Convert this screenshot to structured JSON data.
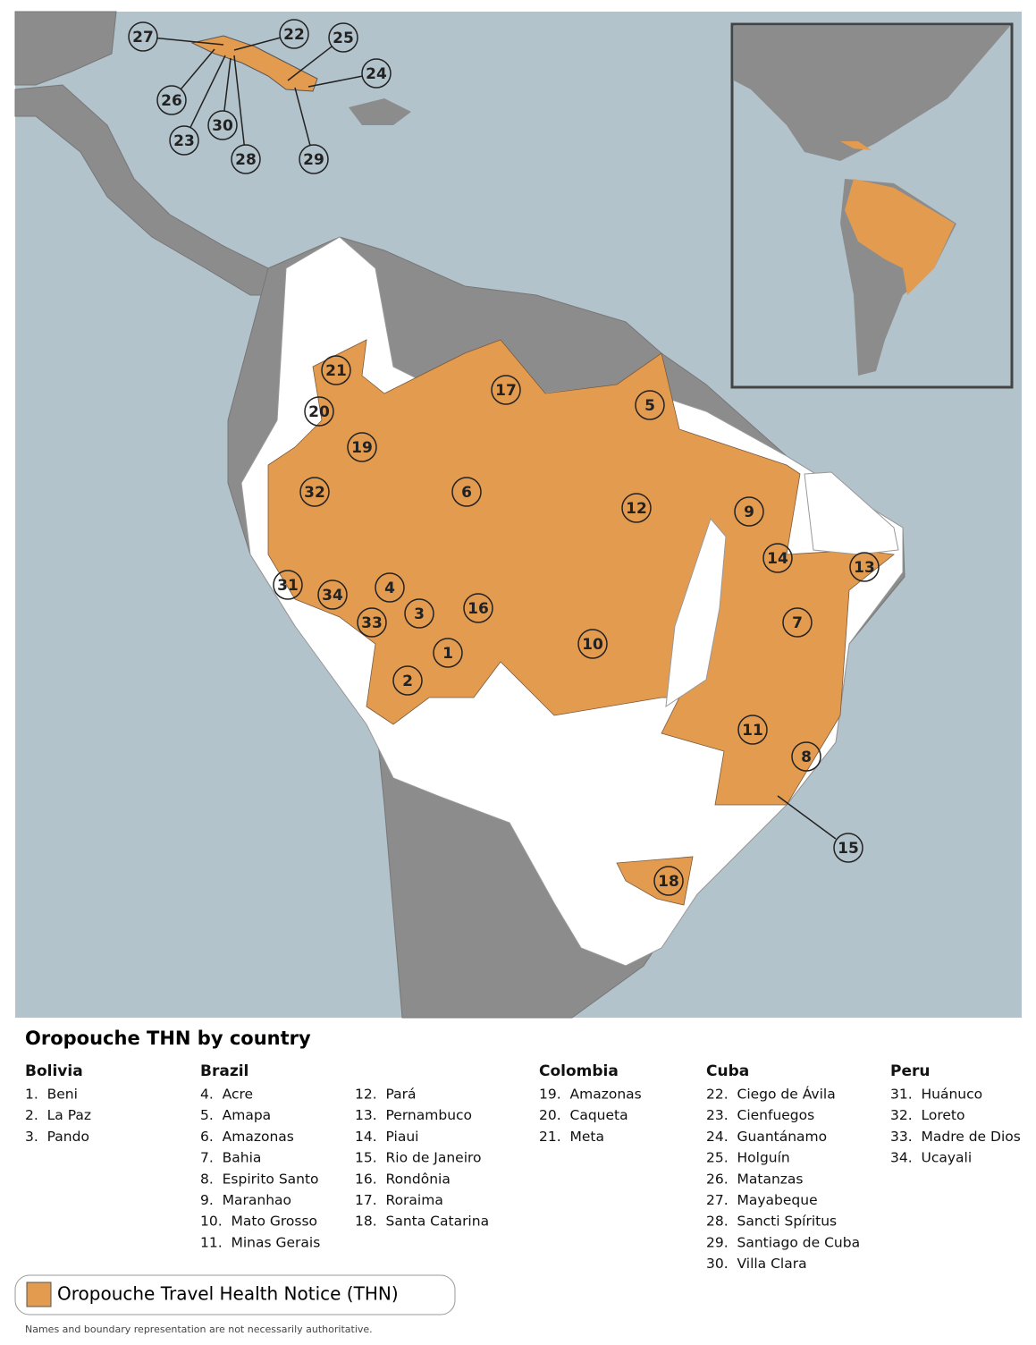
{
  "map_markers": [
    "27",
    "22",
    "25",
    "24",
    "26",
    "30",
    "23",
    "28",
    "29",
    "21",
    "17",
    "5",
    "20",
    "19",
    "32",
    "6",
    "12",
    "9",
    "14",
    "13",
    "31",
    "4",
    "34",
    "3",
    "16",
    "33",
    "7",
    "1",
    "10",
    "2",
    "11",
    "8",
    "15",
    "18"
  ],
  "legend_title": "Oropouche THN by country",
  "countries": [
    {
      "name": "Bolivia",
      "items": [
        "1.  Beni",
        "2.  La Paz",
        "3.  Pando"
      ]
    },
    {
      "name": "Brazil",
      "items": [
        "4.  Acre",
        "5.  Amapa",
        "6.  Amazonas",
        "7.  Bahia",
        "8.  Espirito Santo",
        "9.  Maranhao",
        "10.  Mato Grosso",
        "11.  Minas Gerais",
        "12.  Pará",
        "13.  Pernambuco",
        "14.  Piaui",
        "15.  Rio de Janeiro",
        "16.  Rondônia",
        "17.  Roraima",
        "18.  Santa Catarina"
      ]
    },
    {
      "name": "Colombia",
      "items": [
        "19.  Amazonas",
        "20.  Caqueta",
        "21.  Meta"
      ]
    },
    {
      "name": "Cuba",
      "items": [
        "22.  Ciego de Ávila",
        "23.  Cienfuegos",
        "24.  Guantánamo",
        "25.  Holguín",
        "26.  Matanzas",
        "27.  Mayabeque",
        "28.  Sancti Spíritus",
        "29.  Santiago de Cuba",
        "30.  Villa Clara"
      ]
    },
    {
      "name": "Peru",
      "items": [
        "31.  Huánuco",
        "32.  Loreto",
        "33.  Madre de Dios",
        "34.  Ucayali"
      ]
    }
  ],
  "key_label": "Oropouche Travel Health Notice (THN)",
  "footnote": "Names and boundary representation are not necessarily authoritative."
}
